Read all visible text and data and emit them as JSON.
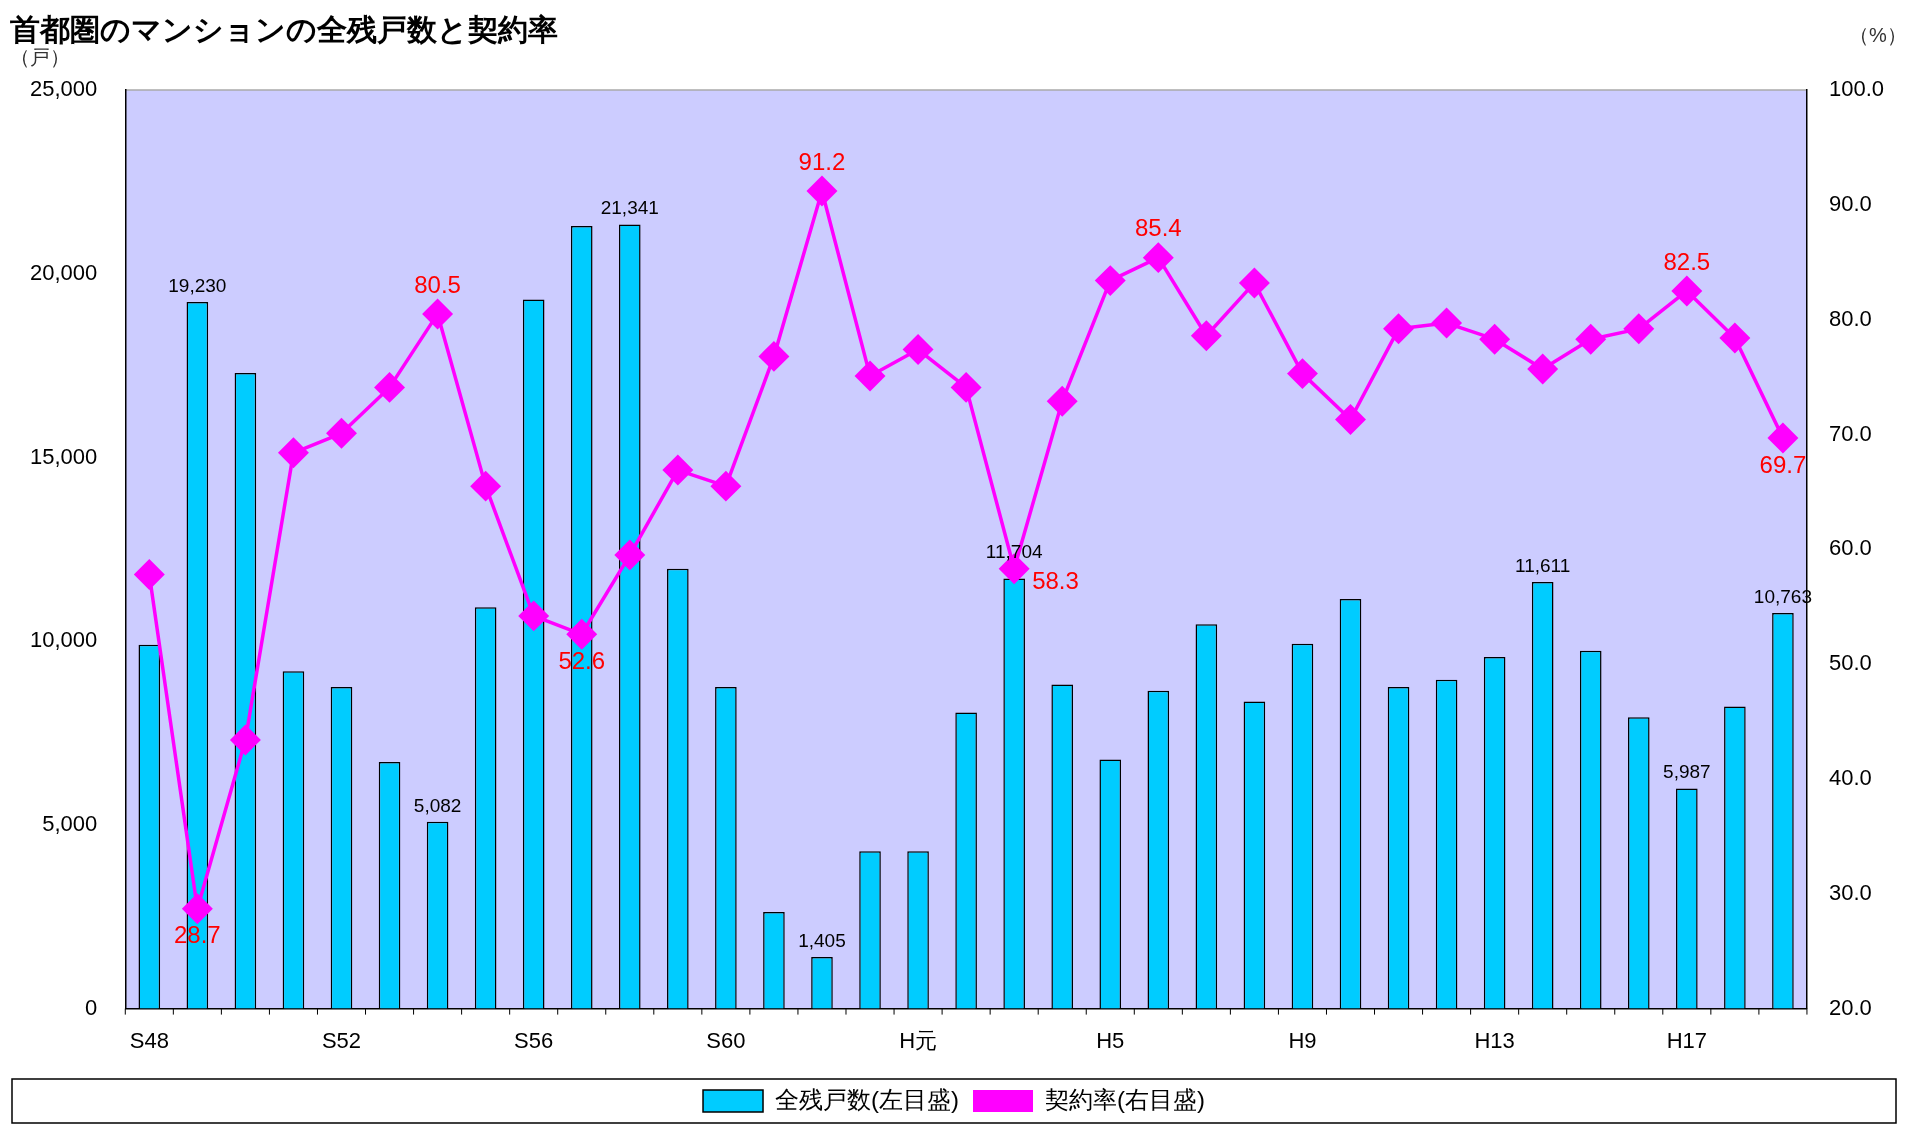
{
  "chart_data": {
    "type": "bar",
    "title": "首都圏のマンションの全残戸数と契約率",
    "ylabel": "（戸）",
    "y2label": "（%）",
    "categories": [
      "S48",
      null,
      null,
      null,
      "S52",
      null,
      null,
      null,
      "S56",
      null,
      null,
      null,
      "S60",
      null,
      null,
      null,
      "H元",
      null,
      null,
      null,
      "H5",
      null,
      null,
      null,
      "H9",
      null,
      null,
      null,
      "H13",
      null,
      null,
      null,
      "H17",
      null,
      null
    ],
    "series": [
      {
        "name": "全残戸数(左目盛)",
        "color": "#00ccff",
        "values": [
          9900,
          19230,
          17300,
          9180,
          8750,
          6710,
          5082,
          10920,
          19300,
          21300,
          21341,
          11970,
          8750,
          2630,
          1405,
          4280,
          4280,
          8060,
          11704,
          8820,
          6780,
          8650,
          10460,
          8360,
          9930,
          11150,
          8750,
          8950,
          9570,
          11611,
          9740,
          7930,
          5987,
          8220,
          10763
        ],
        "value_labels": [
          null,
          "19,230",
          null,
          null,
          null,
          null,
          "5,082",
          null,
          null,
          null,
          "21,341",
          null,
          null,
          null,
          "1,405",
          null,
          null,
          null,
          "11,704",
          null,
          null,
          null,
          null,
          null,
          null,
          null,
          null,
          null,
          null,
          "11,611",
          null,
          null,
          "5,987",
          null,
          "10,763"
        ]
      },
      {
        "name": "契約率(右目盛)",
        "type": "line",
        "axis": "y2",
        "color": "#ff00ff",
        "marker": "diamond",
        "values": [
          57.8,
          28.7,
          43.4,
          68.4,
          70.1,
          74.1,
          80.5,
          65.5,
          54.2,
          52.6,
          59.5,
          66.9,
          65.5,
          76.8,
          91.2,
          75.1,
          77.4,
          74.1,
          58.3,
          72.9,
          83.4,
          85.4,
          78.6,
          83.2,
          75.3,
          71.3,
          79.2,
          79.7,
          78.3,
          75.7,
          78.3,
          79.2,
          82.5,
          78.4,
          69.7
        ],
        "value_labels": [
          null,
          "28.7",
          null,
          null,
          null,
          null,
          "80.5",
          null,
          null,
          "52.6",
          null,
          null,
          null,
          null,
          "91.2",
          null,
          null,
          null,
          "58.3",
          null,
          null,
          "85.4",
          null,
          null,
          null,
          null,
          null,
          null,
          null,
          null,
          null,
          null,
          "82.5",
          null,
          "69.7"
        ]
      }
    ],
    "ylim": [
      0,
      25000
    ],
    "yticks": [
      0,
      {
        "value": 5000,
        "label": "5,000"
      },
      {
        "value": 10000,
        "label": "10,000"
      },
      {
        "value": 15000,
        "label": "15,000"
      },
      {
        "value": 20000,
        "label": "20,000"
      },
      {
        "value": 25000,
        "label": "25,000"
      }
    ],
    "y2lim": [
      20,
      100
    ],
    "y2ticks": [
      {
        "value": 20,
        "label": "20.0"
      },
      {
        "value": 30,
        "label": "30.0"
      },
      {
        "value": 40,
        "label": "40.0"
      },
      {
        "value": 50,
        "label": "50.0"
      },
      {
        "value": 60,
        "label": "60.0"
      },
      {
        "value": 70,
        "label": "70.0"
      },
      {
        "value": 80,
        "label": "80.0"
      },
      {
        "value": 90,
        "label": "90.0"
      },
      {
        "value": 100,
        "label": "100.0"
      }
    ],
    "grid": false,
    "legend": "bottom"
  }
}
